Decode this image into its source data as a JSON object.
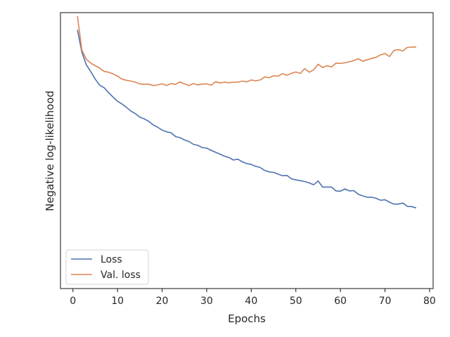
{
  "chart_data": {
    "type": "line",
    "title": "",
    "xlabel": "Epochs",
    "ylabel": "Negative log-likelihood",
    "xlim": [
      -2.8,
      80.8
    ],
    "ylim": [
      0,
      1
    ],
    "x_ticks": [
      0,
      10,
      20,
      30,
      40,
      50,
      60,
      70,
      80
    ],
    "y_ticks_labeled": false,
    "grid": false,
    "legend_location": "lower-left",
    "series": [
      {
        "name": "Loss",
        "color": "#4c72b0",
        "x": [
          1,
          2,
          3,
          4,
          5,
          6,
          7,
          8,
          9,
          10,
          11,
          12,
          13,
          14,
          15,
          16,
          17,
          18,
          19,
          20,
          21,
          22,
          23,
          24,
          25,
          26,
          27,
          28,
          29,
          30,
          31,
          32,
          33,
          34,
          35,
          36,
          37,
          38,
          39,
          40,
          41,
          42,
          43,
          44,
          45,
          46,
          47,
          48,
          49,
          50,
          51,
          52,
          53,
          54,
          55,
          56,
          57,
          58,
          59,
          60,
          61,
          62,
          63,
          64,
          65,
          66,
          67,
          68,
          69,
          70,
          71,
          72,
          73,
          74,
          75,
          76,
          77
        ],
        "values": [
          0.938,
          0.857,
          0.811,
          0.786,
          0.759,
          0.737,
          0.728,
          0.71,
          0.694,
          0.679,
          0.669,
          0.657,
          0.643,
          0.634,
          0.621,
          0.615,
          0.606,
          0.593,
          0.585,
          0.574,
          0.568,
          0.565,
          0.551,
          0.547,
          0.539,
          0.533,
          0.523,
          0.519,
          0.511,
          0.509,
          0.501,
          0.494,
          0.487,
          0.48,
          0.475,
          0.466,
          0.469,
          0.459,
          0.453,
          0.45,
          0.443,
          0.439,
          0.428,
          0.423,
          0.421,
          0.415,
          0.409,
          0.41,
          0.398,
          0.394,
          0.391,
          0.388,
          0.383,
          0.376,
          0.39,
          0.368,
          0.368,
          0.368,
          0.354,
          0.353,
          0.361,
          0.354,
          0.355,
          0.342,
          0.336,
          0.331,
          0.331,
          0.327,
          0.32,
          0.322,
          0.313,
          0.306,
          0.306,
          0.31,
          0.298,
          0.297,
          0.292
        ]
      },
      {
        "name": "Val. loss",
        "color": "#dd8452",
        "x": [
          1,
          2,
          3,
          4,
          5,
          6,
          7,
          8,
          9,
          10,
          11,
          12,
          13,
          14,
          15,
          16,
          17,
          18,
          19,
          20,
          21,
          22,
          23,
          24,
          25,
          26,
          27,
          28,
          29,
          30,
          31,
          32,
          33,
          34,
          35,
          36,
          37,
          38,
          39,
          40,
          41,
          42,
          43,
          44,
          45,
          46,
          47,
          48,
          49,
          50,
          51,
          52,
          53,
          54,
          55,
          56,
          57,
          58,
          59,
          60,
          61,
          62,
          63,
          64,
          65,
          66,
          67,
          68,
          69,
          70,
          71,
          72,
          73,
          74,
          75,
          76,
          77
        ],
        "values": [
          0.988,
          0.864,
          0.831,
          0.817,
          0.808,
          0.799,
          0.787,
          0.784,
          0.778,
          0.77,
          0.759,
          0.755,
          0.752,
          0.748,
          0.742,
          0.74,
          0.741,
          0.736,
          0.738,
          0.742,
          0.736,
          0.743,
          0.74,
          0.749,
          0.742,
          0.736,
          0.743,
          0.738,
          0.741,
          0.742,
          0.737,
          0.75,
          0.745,
          0.748,
          0.746,
          0.748,
          0.748,
          0.752,
          0.749,
          0.756,
          0.753,
          0.756,
          0.767,
          0.764,
          0.771,
          0.77,
          0.779,
          0.773,
          0.78,
          0.785,
          0.78,
          0.797,
          0.784,
          0.793,
          0.813,
          0.801,
          0.808,
          0.803,
          0.817,
          0.816,
          0.818,
          0.822,
          0.826,
          0.833,
          0.824,
          0.829,
          0.834,
          0.838,
          0.847,
          0.852,
          0.841,
          0.863,
          0.866,
          0.861,
          0.874,
          0.875,
          0.875
        ]
      }
    ]
  }
}
